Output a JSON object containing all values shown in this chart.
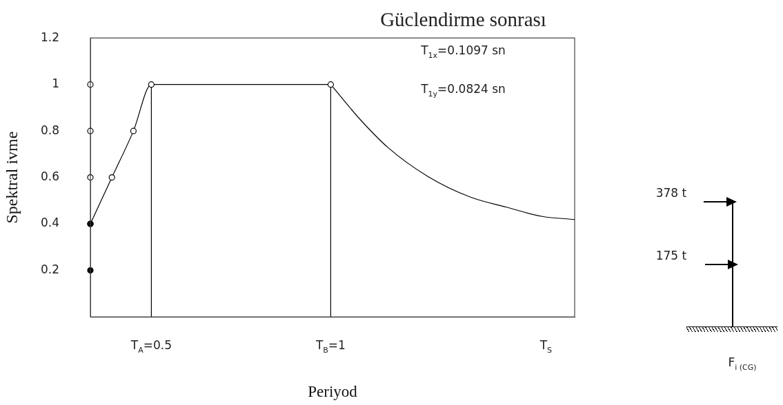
{
  "chart_data": {
    "type": "line",
    "title": "Güclendirme sonrası",
    "xlabel": "Periyod",
    "ylabel": "Spektral ivme",
    "xlim": [
      0.33,
      1.68
    ],
    "xticks": [
      {
        "value": 0.5,
        "label": "T$_{A}$=0.5"
      },
      {
        "value": 1,
        "label": "T$_{B}$=1"
      },
      {
        "value": 1.6,
        "label": "T$_{S}$"
      }
    ],
    "ylim": [
      0,
      1.2
    ],
    "yticks": [
      0.2,
      0.4,
      0.6,
      0.8,
      1,
      1.2
    ],
    "series": [
      {
        "type": "scatter",
        "color": "#000000",
        "marker": "circle",
        "colors": [
          "#ffffff",
          "#ffffff",
          "#ffffff",
          "#000000",
          "#000000"
        ],
        "x": [
          0.33,
          0.33,
          0.33,
          0.33,
          0.33
        ],
        "values": [
          1,
          0.8,
          0.6,
          0.4,
          0.2
        ]
      },
      {
        "color": "#000000",
        "marker": "circle",
        "x": [
          0.33,
          0.39,
          0.45,
          0.5,
          1
        ],
        "values": [
          0.4,
          0.6,
          0.8,
          1,
          1
        ]
      },
      {
        "color": "#000000",
        "marker": "none",
        "x": [
          1,
          1.08,
          1.16,
          1.27,
          1.39,
          1.49,
          1.59,
          1.68
        ],
        "values": [
          1,
          0.853,
          0.728,
          0.605,
          0.515,
          0.472,
          0.432,
          0.419
        ]
      },
      {
        "color": "#000000",
        "marker": "none",
        "x": [
          0.5,
          0.5
        ],
        "values": [
          0,
          1
        ]
      },
      {
        "color": "#000000",
        "marker": "none",
        "x": [
          1,
          1
        ],
        "values": [
          0,
          1
        ]
      }
    ],
    "annotations": [
      "T$_{1x}$=0.1097 sn",
      "T$_{1y}$=0.0824 sn",
      "378 t",
      "175 t",
      "F$_{i (CG)}$"
    ],
    "grid": false,
    "legend": false
  }
}
